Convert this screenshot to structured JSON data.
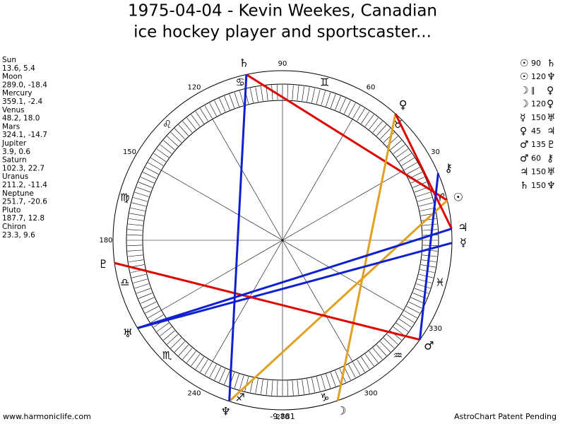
{
  "title": [
    "1975-04-04 - Kevin Weekes, Canadian",
    "ice hockey player and sportscaster..."
  ],
  "planets": [
    {
      "name": "Sun",
      "glyph": "☉",
      "position": "13.6, 5.4"
    },
    {
      "name": "Moon",
      "glyph": "☽",
      "position": "289.0, -18.4"
    },
    {
      "name": "Mercury",
      "glyph": "☿",
      "position": "359.1, -2.4"
    },
    {
      "name": "Venus",
      "glyph": "♀",
      "position": "48.2, 18.0"
    },
    {
      "name": "Mars",
      "glyph": "♂",
      "position": "324.1, -14.7"
    },
    {
      "name": "Jupiter",
      "glyph": "♃",
      "position": "3.9, 0.6"
    },
    {
      "name": "Saturn",
      "glyph": "♄",
      "position": "102.3, 22.7"
    },
    {
      "name": "Uranus",
      "glyph": "♅",
      "position": "211.2, -11.4"
    },
    {
      "name": "Neptune",
      "glyph": "♆",
      "position": "251.7, -20.6"
    },
    {
      "name": "Pluto",
      "glyph": "♇",
      "position": "187.7, 12.8"
    },
    {
      "name": "Chiron",
      "glyph": "⚷",
      "position": "23.3, 9.6"
    }
  ],
  "aspects": [
    {
      "from": "☉",
      "aspect": 90,
      "to": "♄",
      "color": "#e00000"
    },
    {
      "from": "☉",
      "aspect": 120,
      "to": "♆",
      "color": "#e0a020"
    },
    {
      "from": "☽",
      "aspect": "∥",
      "to": "♀"
    },
    {
      "from": "☽",
      "aspect": 120,
      "to": "♀",
      "color": "#e0a020"
    },
    {
      "from": "☿",
      "aspect": 150,
      "to": "♅",
      "color": "#1020d0"
    },
    {
      "from": "♀",
      "aspect": 45,
      "to": "♃",
      "color": "#e00000"
    },
    {
      "from": "♂",
      "aspect": 135,
      "to": "♇",
      "color": "#e00000"
    },
    {
      "from": "♂",
      "aspect": 60,
      "to": "⚷",
      "color": "#1020d0"
    },
    {
      "from": "♃",
      "aspect": 150,
      "to": "♅",
      "color": "#1020d0"
    },
    {
      "from": "♄",
      "aspect": 150,
      "to": "♆",
      "color": "#1020d0"
    }
  ],
  "signs": [
    "♈",
    "♉",
    "♊",
    "♋",
    "♌",
    "♍",
    "♎",
    "♏",
    "♐",
    "♑",
    "♒",
    "♓"
  ],
  "degree_labels": [
    30,
    60,
    90,
    120,
    150,
    180,
    240,
    270,
    300,
    330
  ],
  "bottom_value": "-9,881",
  "footer": {
    "left": "www.harmoniclife.com",
    "right": "AstroChart Patent Pending"
  }
}
